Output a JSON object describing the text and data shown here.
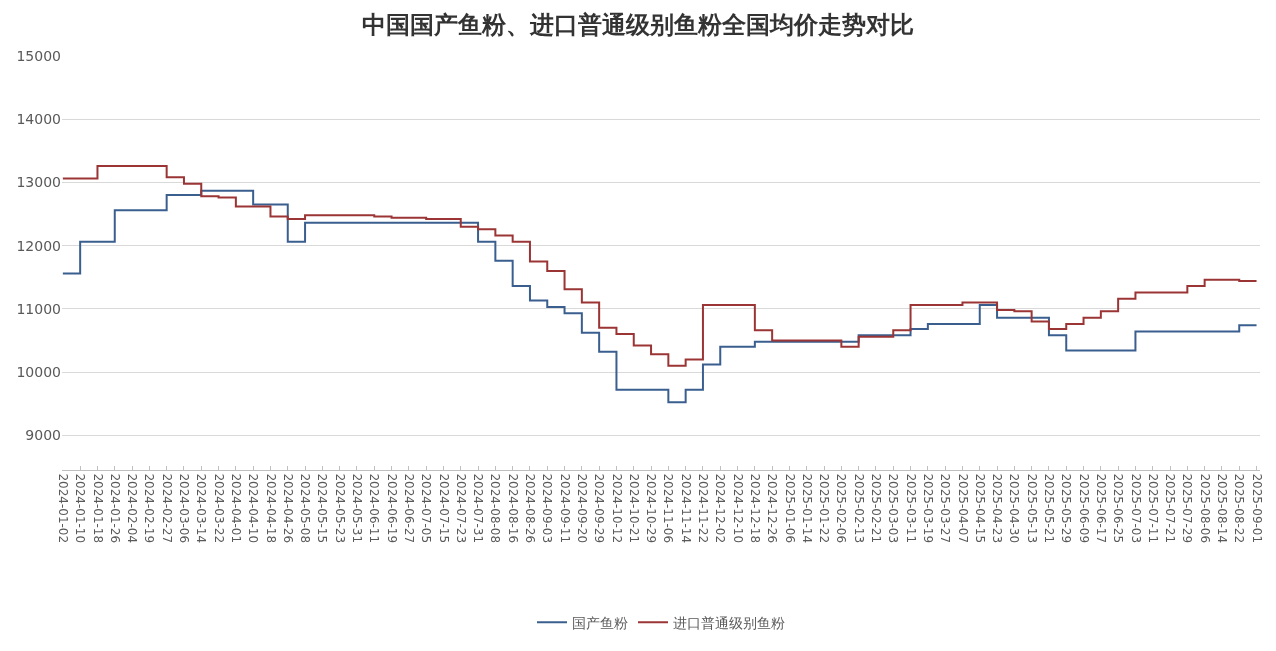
{
  "chart_data": {
    "type": "step",
    "title": "中国国产鱼粉、进口普通级别鱼粉全国均价走势对比",
    "categories": [
      "2024-01-02",
      "2024-01-10",
      "2024-01-18",
      "2024-01-26",
      "2024-02-04",
      "2024-02-19",
      "2024-02-27",
      "2024-03-06",
      "2024-03-14",
      "2024-03-22",
      "2024-04-01",
      "2024-04-10",
      "2024-04-18",
      "2024-04-26",
      "2024-05-08",
      "2024-05-15",
      "2024-05-23",
      "2024-05-31",
      "2024-06-11",
      "2024-06-19",
      "2024-06-27",
      "2024-07-05",
      "2024-07-15",
      "2024-07-23",
      "2024-07-31",
      "2024-08-08",
      "2024-08-16",
      "2024-08-26",
      "2024-09-03",
      "2024-09-11",
      "2024-09-20",
      "2024-09-29",
      "2024-10-12",
      "2024-10-21",
      "2024-10-29",
      "2024-11-06",
      "2024-11-14",
      "2024-11-22",
      "2024-12-02",
      "2024-12-10",
      "2024-12-18",
      "2024-12-26",
      "2025-01-06",
      "2025-01-14",
      "2025-01-22",
      "2025-02-06",
      "2025-02-13",
      "2025-02-21",
      "2025-03-03",
      "2025-03-11",
      "2025-03-19",
      "2025-03-27",
      "2025-04-07",
      "2025-04-15",
      "2025-04-23",
      "2025-04-30",
      "2025-05-13",
      "2025-05-21",
      "2025-05-29",
      "2025-06-09",
      "2025-06-17",
      "2025-06-25",
      "2025-07-03",
      "2025-07-11",
      "2025-07-21",
      "2025-07-29",
      "2025-08-06",
      "2025-08-14",
      "2025-08-22",
      "2025-09-01"
    ],
    "series": [
      {
        "name": "国产鱼粉",
        "color": "#3a5f8f",
        "values": [
          11560,
          12060,
          12060,
          12560,
          12560,
          12560,
          12800,
          12800,
          12870,
          12870,
          12870,
          12650,
          12650,
          12060,
          12360,
          12360,
          12360,
          12360,
          12360,
          12360,
          12360,
          12360,
          12360,
          12360,
          12060,
          11760,
          11360,
          11130,
          11030,
          10930,
          10620,
          10320,
          9720,
          9720,
          9720,
          9520,
          9720,
          10120,
          10400,
          10400,
          10480,
          10480,
          10480,
          10480,
          10480,
          10480,
          10580,
          10580,
          10580,
          10680,
          10760,
          10760,
          10760,
          11060,
          10860,
          10860,
          10860,
          10580,
          10340,
          10340,
          10340,
          10340,
          10640,
          10640,
          10640,
          10640,
          10640,
          10640,
          10740,
          10740
        ]
      },
      {
        "name": "进口普通级别鱼粉",
        "color": "#9b3434",
        "values": [
          13060,
          13060,
          13260,
          13260,
          13260,
          13260,
          13080,
          12980,
          12780,
          12760,
          12620,
          12620,
          12460,
          12420,
          12480,
          12480,
          12480,
          12480,
          12460,
          12440,
          12440,
          12420,
          12420,
          12300,
          12260,
          12160,
          12060,
          11750,
          11600,
          11310,
          11100,
          10700,
          10600,
          10420,
          10280,
          10100,
          10200,
          11060,
          11060,
          11060,
          10660,
          10500,
          10500,
          10500,
          10500,
          10400,
          10560,
          10560,
          10660,
          11060,
          11060,
          11060,
          11100,
          11100,
          10980,
          10960,
          10800,
          10680,
          10760,
          10860,
          10960,
          11160,
          11260,
          11260,
          11260,
          11360,
          11460,
          11460,
          11440,
          11440
        ]
      }
    ],
    "ylim": [
      8450,
      15000
    ],
    "yticks": [
      9000,
      10000,
      11000,
      12000,
      13000,
      14000,
      15000
    ],
    "grid": "y",
    "legend": "bottom",
    "marker": "none",
    "line_style": "solid"
  }
}
